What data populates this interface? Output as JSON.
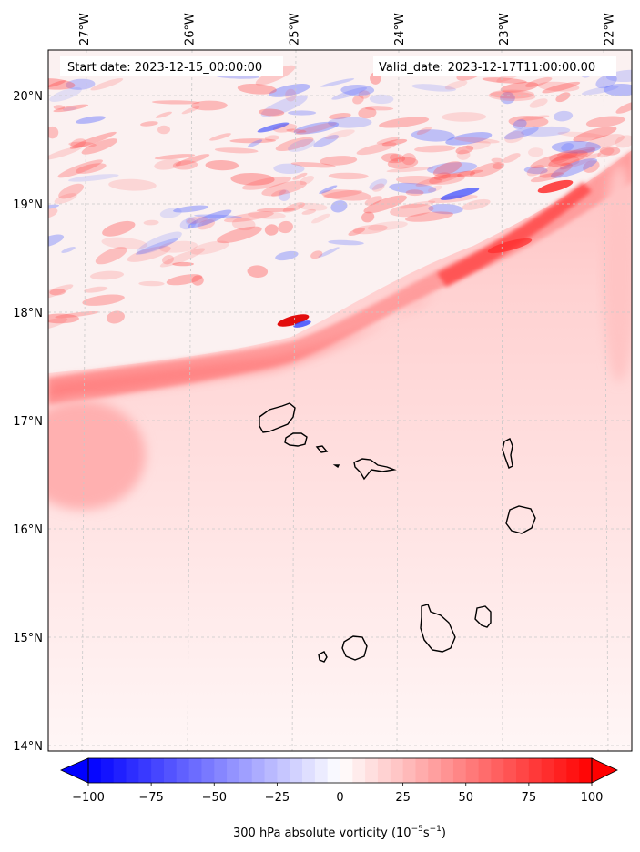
{
  "map": {
    "start_label": "Start date: 2023-12-15_00:00:00",
    "valid_label": "Valid_date: 2023-12-17T11:00:00.00",
    "extent": {
      "lon_min": -27.33,
      "lon_max": -21.77,
      "lat_min": 13.95,
      "lat_max": 20.42
    },
    "lon_ticks": [
      {
        "value": -27,
        "label": "27°W"
      },
      {
        "value": -26,
        "label": "26°W"
      },
      {
        "value": -25,
        "label": "25°W"
      },
      {
        "value": -24,
        "label": "24°W"
      },
      {
        "value": -23,
        "label": "23°W"
      },
      {
        "value": -22,
        "label": "22°W"
      }
    ],
    "lat_ticks": [
      {
        "value": 20,
        "label": "20°N"
      },
      {
        "value": 19,
        "label": "19°N"
      },
      {
        "value": 18,
        "label": "18°N"
      },
      {
        "value": 17,
        "label": "17°N"
      },
      {
        "value": 16,
        "label": "16°N"
      },
      {
        "value": 15,
        "label": "15°N"
      },
      {
        "value": 14,
        "label": "14°N"
      }
    ],
    "gridlines": true,
    "coastline_color": "#000000"
  },
  "colorbar": {
    "min": -100,
    "max": 100,
    "extend": "both",
    "colors": {
      "negative": "#0000ff",
      "zero": "#ffffff",
      "positive": "#ff0000"
    },
    "ticks": [
      {
        "value": -100,
        "label": "−100"
      },
      {
        "value": -75,
        "label": "−75"
      },
      {
        "value": -50,
        "label": "−50"
      },
      {
        "value": -25,
        "label": "−25"
      },
      {
        "value": 0,
        "label": "0"
      },
      {
        "value": 25,
        "label": "25"
      },
      {
        "value": 50,
        "label": "50"
      },
      {
        "value": 75,
        "label": "75"
      },
      {
        "value": 100,
        "label": "100"
      }
    ],
    "label_main": "300 hPa absolute vorticity (10",
    "label_exp1": "−5",
    "label_mid": "s",
    "label_exp2": "−1",
    "label_close": ")"
  }
}
